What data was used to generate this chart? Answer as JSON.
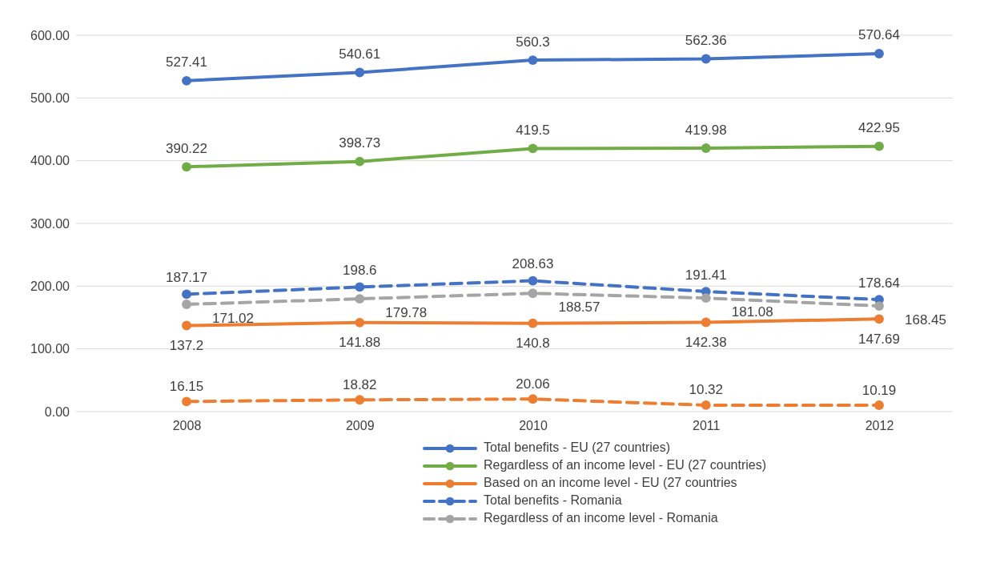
{
  "chart_data": {
    "type": "line",
    "categories": [
      "2008",
      "2009",
      "2010",
      "2011",
      "2012"
    ],
    "ylim": [
      0,
      600
    ],
    "yticks": [
      {
        "value": 0,
        "label": "0.00"
      },
      {
        "value": 100,
        "label": "100.00"
      },
      {
        "value": 200,
        "label": "200.00"
      },
      {
        "value": 300,
        "label": "300.00"
      },
      {
        "value": 400,
        "label": "400.00"
      },
      {
        "value": 500,
        "label": "500.00"
      },
      {
        "value": 600,
        "label": "600.00"
      }
    ],
    "grid": "y",
    "legend": "bottom",
    "marker": "circle",
    "data_labels": true,
    "series": [
      {
        "name": "Total benefits - EU (27 countries)",
        "color": "#4472c4",
        "line_style": "solid",
        "values": [
          527.41,
          540.61,
          560.3,
          562.36,
          570.64
        ]
      },
      {
        "name": "Regardless of an income level - EU (27 countries)",
        "color": "#70ad47",
        "line_style": "solid",
        "values": [
          390.22,
          398.73,
          419.5,
          419.98,
          422.95
        ]
      },
      {
        "name": "Based on an income level - EU (27 countries",
        "color": "#ed7d31",
        "line_style": "solid",
        "values": [
          137.2,
          141.88,
          140.8,
          142.38,
          147.69
        ]
      },
      {
        "name": "Total benefits - Romania",
        "color": "#4472c4",
        "line_style": "dashed",
        "values": [
          187.17,
          198.6,
          208.63,
          191.41,
          178.64
        ]
      },
      {
        "name": "Regardless of an income level - Romania",
        "color": "#a5a5a5",
        "line_style": "dashed",
        "values": [
          171.02,
          179.78,
          188.57,
          181.08,
          168.45
        ]
      },
      {
        "color": "#ed7d31",
        "line_style": "dashed",
        "values": [
          16.15,
          18.82,
          20.06,
          10.32,
          10.19
        ]
      }
    ]
  }
}
